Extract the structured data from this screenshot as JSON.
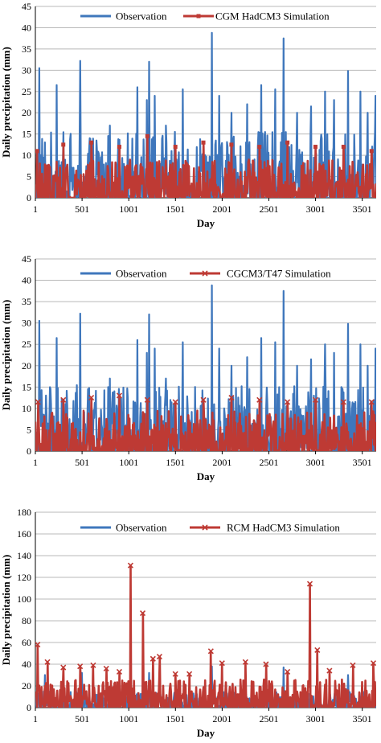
{
  "colors": {
    "observation": "#3f77bc",
    "simulation": "#be3a34",
    "grid": "#b9b9b9",
    "axis": "#000000"
  },
  "chart_data": [
    {
      "type": "line",
      "xlabel": "Day",
      "ylabel": "Daily precipitation (mm)",
      "xlim": [
        1,
        3650
      ],
      "ylim": [
        0,
        45
      ],
      "y_ticks": [
        0,
        5,
        10,
        15,
        20,
        25,
        30,
        35,
        40,
        45
      ],
      "x_ticks": [
        1,
        501,
        1001,
        1501,
        2001,
        2501,
        3001,
        3501
      ],
      "grid": "horizontal",
      "legend": "top",
      "series": [
        {
          "name": "Observation",
          "marker": "none",
          "peaks": [
            [
              40,
              30.5
            ],
            [
              230,
              26.5
            ],
            [
              480,
              32.2
            ],
            [
              800,
              17
            ],
            [
              1090,
              26
            ],
            [
              1195,
              23
            ],
            [
              1220,
              32
            ],
            [
              1280,
              24
            ],
            [
              1400,
              17
            ],
            [
              1580,
              25.5
            ],
            [
              1890,
              38.8
            ],
            [
              1970,
              24
            ],
            [
              2100,
              20
            ],
            [
              2270,
              22
            ],
            [
              2420,
              26.5
            ],
            [
              2570,
              25.5
            ],
            [
              2660,
              37.5
            ],
            [
              2800,
              20
            ],
            [
              2950,
              21.5
            ],
            [
              3100,
              25
            ],
            [
              3200,
              23
            ],
            [
              3350,
              29.8
            ],
            [
              3480,
              25
            ],
            [
              3560,
              20
            ],
            [
              3640,
              24
            ]
          ],
          "typical_max": 15.5
        },
        {
          "name": "CGM HadCM3 Simulation",
          "marker": "square",
          "peaks": [
            [
              20,
              11
            ],
            [
              300,
              12.5
            ],
            [
              600,
              13
            ],
            [
              900,
              12
            ],
            [
              1200,
              14.5
            ],
            [
              1500,
              12
            ],
            [
              1800,
              13
            ],
            [
              2100,
              12.5
            ],
            [
              2400,
              12
            ],
            [
              2700,
              13
            ],
            [
              3000,
              12
            ],
            [
              3300,
              12
            ],
            [
              3600,
              11
            ]
          ],
          "typical_max": 9
        }
      ]
    },
    {
      "type": "line",
      "xlabel": "Day",
      "ylabel": "Daily precipitation (mm)",
      "xlim": [
        1,
        3650
      ],
      "ylim": [
        0,
        45
      ],
      "y_ticks": [
        0,
        5,
        10,
        15,
        20,
        25,
        30,
        35,
        40,
        45
      ],
      "x_ticks": [
        1,
        501,
        1001,
        1501,
        2001,
        2501,
        3001,
        3501
      ],
      "grid": "horizontal",
      "legend": "top",
      "series": [
        {
          "name": "Observation",
          "marker": "none",
          "peaks": [
            [
              40,
              30.5
            ],
            [
              230,
              26.5
            ],
            [
              480,
              32.2
            ],
            [
              800,
              17
            ],
            [
              1090,
              26
            ],
            [
              1195,
              23
            ],
            [
              1220,
              32
            ],
            [
              1280,
              24
            ],
            [
              1400,
              17
            ],
            [
              1580,
              25.5
            ],
            [
              1890,
              38.8
            ],
            [
              1970,
              24
            ],
            [
              2100,
              20
            ],
            [
              2270,
              22
            ],
            [
              2420,
              26.5
            ],
            [
              2570,
              25.5
            ],
            [
              2660,
              37.5
            ],
            [
              2800,
              20
            ],
            [
              2950,
              21.5
            ],
            [
              3100,
              25
            ],
            [
              3200,
              23
            ],
            [
              3350,
              29.8
            ],
            [
              3480,
              25
            ],
            [
              3560,
              20
            ],
            [
              3640,
              24
            ]
          ],
          "typical_max": 15.5
        },
        {
          "name": "CGCM3/T47 Simulation",
          "marker": "x",
          "peaks": [
            [
              30,
              11.5
            ],
            [
              300,
              12
            ],
            [
              600,
              12.5
            ],
            [
              900,
              13
            ],
            [
              1200,
              12
            ],
            [
              1500,
              11.5
            ],
            [
              1800,
              12
            ],
            [
              2100,
              12.5
            ],
            [
              2400,
              12
            ],
            [
              2700,
              11.5
            ],
            [
              3000,
              12
            ],
            [
              3300,
              11.5
            ],
            [
              3600,
              11.5
            ]
          ],
          "typical_max": 9.5
        }
      ]
    },
    {
      "type": "line",
      "xlabel": "Day",
      "ylabel": "Daily precipitation (mm)",
      "xlim": [
        1,
        3650
      ],
      "ylim": [
        0,
        180
      ],
      "y_ticks": [
        0,
        20,
        40,
        60,
        80,
        100,
        120,
        140,
        160,
        180
      ],
      "x_ticks": [
        1,
        501,
        1001,
        1501,
        2001,
        2501,
        3001,
        3501
      ],
      "grid": "horizontal",
      "legend": "top",
      "series": [
        {
          "name": "Observation",
          "marker": "none",
          "peaks": [
            [
              100,
              30
            ],
            [
              500,
              32
            ],
            [
              1220,
              32
            ],
            [
              1890,
              38
            ],
            [
              2660,
              37
            ],
            [
              3350,
              30
            ]
          ],
          "typical_max": 15
        },
        {
          "name": "RCM HadCM3 Simulation",
          "marker": "x",
          "peaks": [
            [
              25,
              58
            ],
            [
              130,
              42
            ],
            [
              300,
              37
            ],
            [
              480,
              38
            ],
            [
              620,
              39
            ],
            [
              760,
              36
            ],
            [
              900,
              33
            ],
            [
              1020,
              131
            ],
            [
              1150,
              87
            ],
            [
              1260,
              45
            ],
            [
              1330,
              47
            ],
            [
              1500,
              31
            ],
            [
              1650,
              31
            ],
            [
              1880,
              52
            ],
            [
              2000,
              41
            ],
            [
              2250,
              42
            ],
            [
              2470,
              40
            ],
            [
              2700,
              33
            ],
            [
              2940,
              114
            ],
            [
              3020,
              53
            ],
            [
              3150,
              34
            ],
            [
              3400,
              39
            ],
            [
              3620,
              41
            ]
          ],
          "typical_max": 26
        }
      ]
    }
  ]
}
